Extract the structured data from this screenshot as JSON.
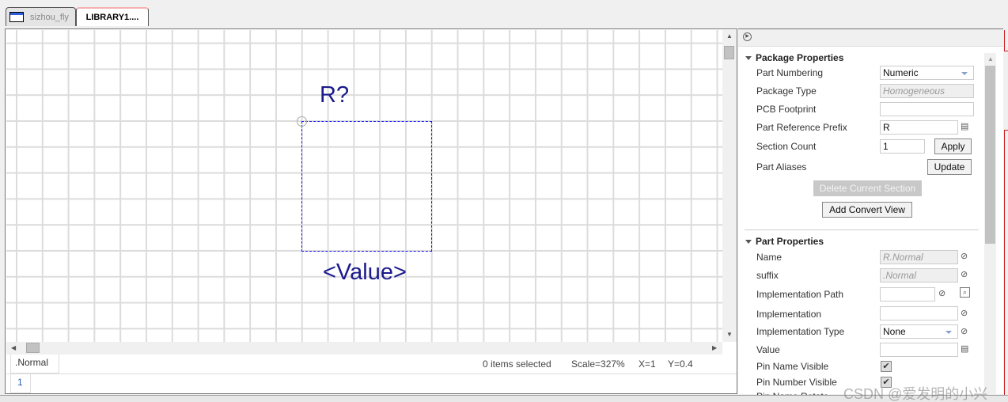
{
  "tabs": [
    {
      "label": "sizhou_fly",
      "active": false
    },
    {
      "label": "LIBRARY1....",
      "active": true
    }
  ],
  "canvas": {
    "ref_designator": "R?",
    "value_label": "<Value>"
  },
  "status": {
    "view_tab": ".Normal",
    "selection": "0 items selected",
    "scale": "Scale=327%",
    "x": "X=1",
    "y": "Y=0.4",
    "page_tab": "1"
  },
  "package_properties": {
    "title": "Package Properties",
    "part_numbering": {
      "label": "Part Numbering",
      "value": "Numeric"
    },
    "package_type": {
      "label": "Package Type",
      "value": "Homogeneous"
    },
    "pcb_footprint": {
      "label": "PCB Footprint",
      "value": ""
    },
    "part_reference_prefix": {
      "label": "Part Reference Prefix",
      "value": "R"
    },
    "section_count": {
      "label": "Section Count",
      "value": "1"
    },
    "apply_label": "Apply",
    "part_aliases": {
      "label": "Part Aliases"
    },
    "update_label": "Update",
    "delete_section_label": "Delete Current Section",
    "add_convert_view_label": "Add Convert View"
  },
  "part_properties": {
    "title": "Part Properties",
    "name": {
      "label": "Name",
      "value": "R.Normal"
    },
    "suffix": {
      "label": "suffix",
      "value": ".Normal"
    },
    "implementation_path": {
      "label": "Implementation Path",
      "value": ""
    },
    "implementation": {
      "label": "Implementation",
      "value": ""
    },
    "implementation_type": {
      "label": "Implementation Type",
      "value": "None"
    },
    "value": {
      "label": "Value",
      "value": ""
    },
    "pin_name_visible": {
      "label": "Pin Name Visible",
      "checked": true
    },
    "pin_number_visible": {
      "label": "Pin Number Visible",
      "checked": true
    },
    "pin_name_rotate": {
      "label": "Pin Name Rotate",
      "checked": false
    }
  },
  "watermark": "CSDN @爱发明的小兴",
  "colors": {
    "symbol_text": "#1a1a8c",
    "outline": "#1a1aff",
    "accent_red": "#d02020"
  }
}
